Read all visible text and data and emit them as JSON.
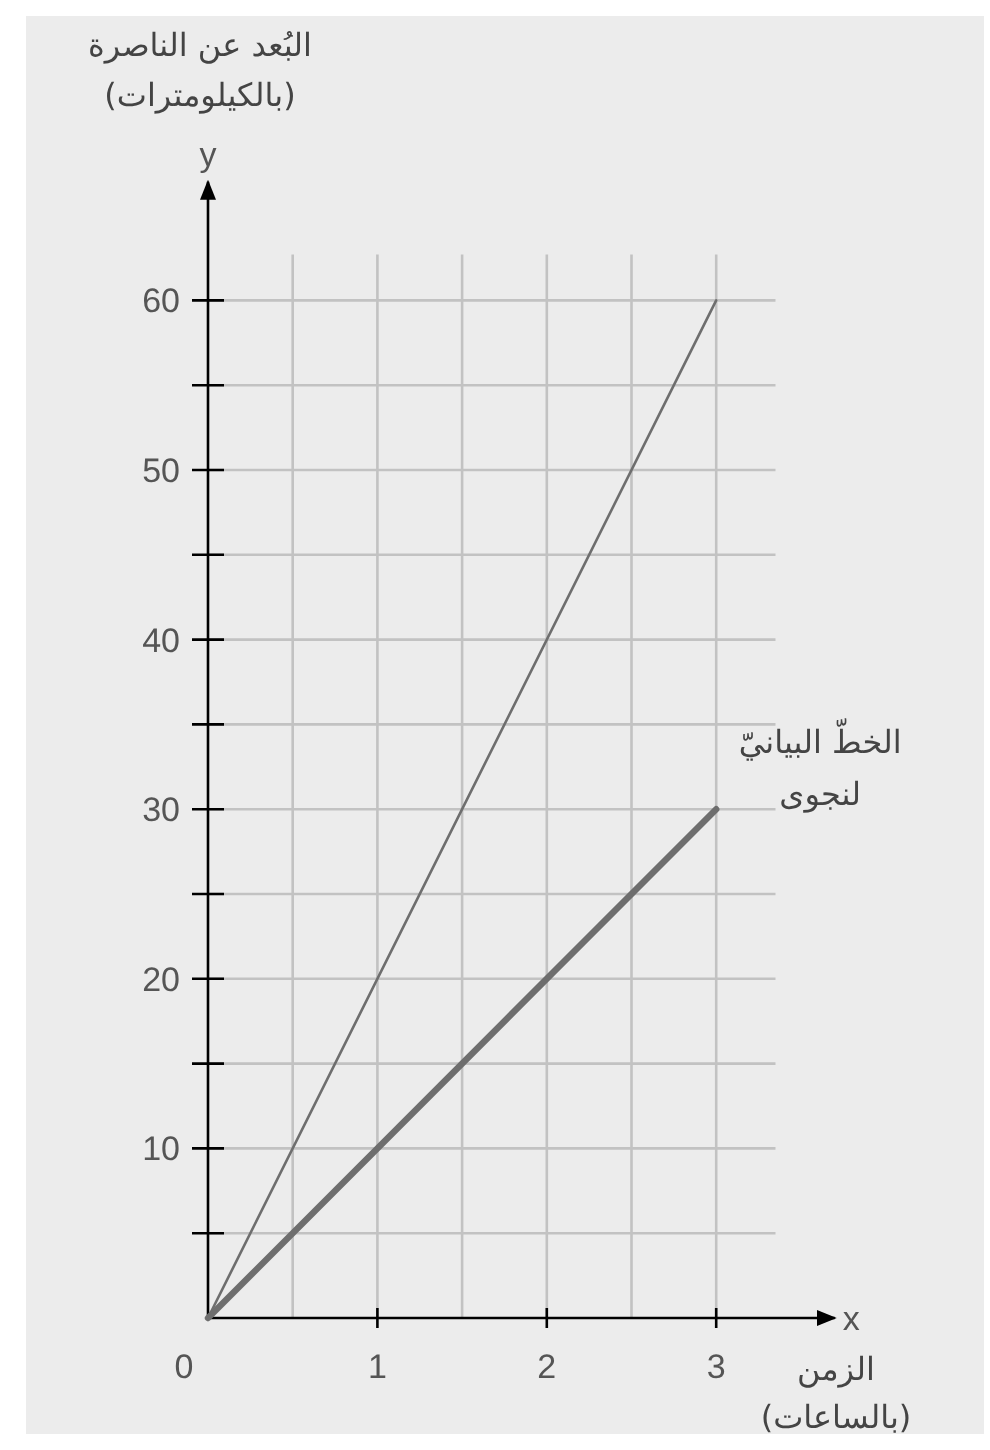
{
  "chart_data": {
    "type": "line",
    "xlabel": "الزمن (بالساعات)",
    "ylabel": "البُعد عن الناصرة (بالكيلومترات)",
    "annotations": [
      "x",
      "y"
    ],
    "x": [
      0,
      3
    ],
    "series": [
      {
        "color": "#6e6e6e",
        "values": [
          0,
          60
        ]
      },
      {
        "name": "الخطّ البيانيّ لنجوى",
        "color": "#6e6e6e",
        "values": [
          0,
          30
        ]
      }
    ],
    "xlim": [
      0,
      3.7
    ],
    "ylim": [
      0,
      67
    ],
    "xticks": [
      0,
      {
        "value": 0.5,
        "label": null
      },
      1,
      {
        "value": 1.5,
        "label": null
      },
      2,
      {
        "value": 2.5,
        "label": null
      },
      3
    ],
    "yticks": [
      {
        "value": 0,
        "label": null
      },
      {
        "value": 5,
        "label": null
      },
      10,
      {
        "value": 15,
        "label": null
      },
      20,
      {
        "value": 25,
        "label": null
      },
      30,
      {
        "value": 35,
        "label": null
      },
      40,
      {
        "value": 45,
        "label": null
      },
      50,
      {
        "value": 55,
        "label": null
      },
      60
    ],
    "grid": true
  }
}
